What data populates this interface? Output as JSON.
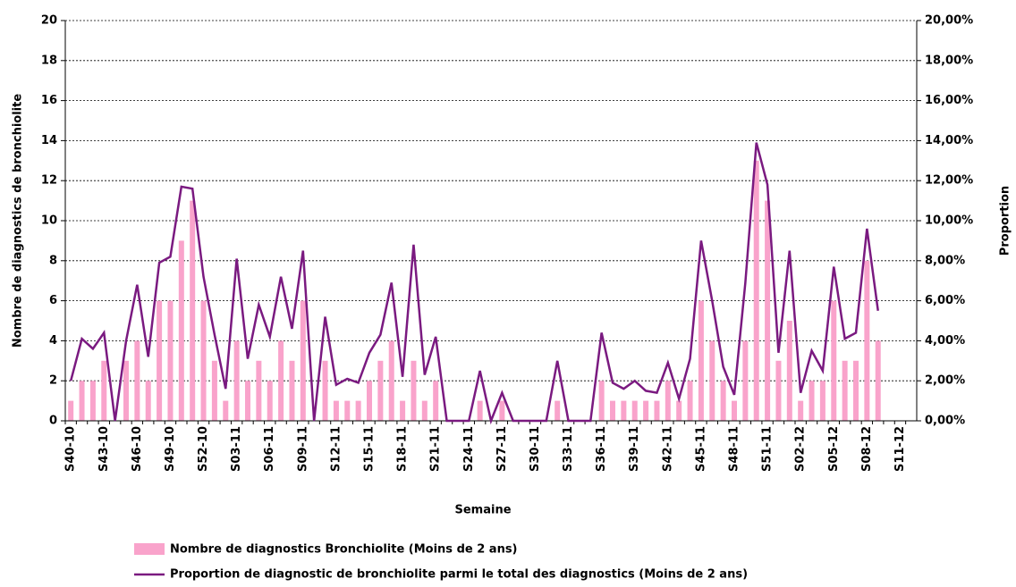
{
  "chart_data": {
    "type": "bar_line",
    "x_label": "Semaine",
    "y_label": "Nombre de diagnostics de bronchiolite",
    "y2_label": "Proportion",
    "categories": [
      "S40-10",
      null,
      null,
      "S43-10",
      null,
      null,
      "S46-10",
      null,
      null,
      "S49-10",
      null,
      null,
      "S52-10",
      null,
      null,
      "S03-11",
      null,
      null,
      "S06-11",
      null,
      null,
      "S09-11",
      null,
      null,
      "S12-11",
      null,
      null,
      "S15-11",
      null,
      null,
      "S18-11",
      null,
      null,
      "S21-11",
      null,
      null,
      "S24-11",
      null,
      null,
      "S27-11",
      null,
      null,
      "S30-11",
      null,
      null,
      "S33-11",
      null,
      null,
      "S36-11",
      null,
      null,
      "S39-11",
      null,
      null,
      "S42-11",
      null,
      null,
      "S45-11",
      null,
      null,
      "S48-11",
      null,
      null,
      "S51-11",
      null,
      null,
      "S02-12",
      null,
      null,
      "S05-12",
      null,
      null,
      "S08-12",
      null,
      null,
      "S11-12",
      null
    ],
    "series": [
      {
        "name": "Nombre de diagnostics Bronchiolite (Moins de 2 ans)",
        "kind": "bar",
        "color": "#f9a3cb",
        "values": [
          1,
          2,
          2,
          3,
          0,
          3,
          4,
          2,
          6,
          6,
          9,
          11,
          6,
          3,
          1,
          4,
          2,
          3,
          2,
          4,
          3,
          6,
          0,
          3,
          1,
          1,
          1,
          2,
          3,
          4,
          1,
          3,
          1,
          2,
          0,
          0,
          0,
          1,
          0,
          1,
          0,
          0,
          0,
          0,
          1,
          0,
          0,
          0,
          2,
          1,
          1,
          1,
          1,
          1,
          2,
          1,
          2,
          6,
          4,
          2,
          1,
          4,
          13,
          11,
          3,
          5,
          1,
          2,
          2,
          6,
          3,
          3,
          8,
          4,
          null,
          null,
          null
        ]
      },
      {
        "name": "Proportion de diagnostic de bronchiolite parmi le total des diagnostics (Moins de 2 ans)",
        "kind": "line",
        "axis": "y2",
        "color": "#7a1a80",
        "values": [
          2.0,
          4.1,
          3.6,
          4.4,
          0,
          4.0,
          6.8,
          3.2,
          7.9,
          8.2,
          11.7,
          11.6,
          7.2,
          4.3,
          1.6,
          8.1,
          3.1,
          5.8,
          4.2,
          7.2,
          4.6,
          8.5,
          0,
          5.2,
          1.8,
          2.1,
          1.9,
          3.4,
          4.3,
          6.9,
          2.2,
          8.8,
          2.3,
          4.2,
          0,
          0,
          0,
          2.5,
          0,
          1.4,
          0,
          0,
          0,
          0,
          3.0,
          0,
          0,
          0,
          4.4,
          1.9,
          1.6,
          2.0,
          1.5,
          1.4,
          2.9,
          1.1,
          3.1,
          9.0,
          6.0,
          2.7,
          1.3,
          6.9,
          13.9,
          11.8,
          3.4,
          8.5,
          1.4,
          3.5,
          2.5,
          7.7,
          4.1,
          4.4,
          9.6,
          5.5,
          null,
          null,
          null
        ]
      }
    ],
    "ylim": [
      0,
      20
    ],
    "yticks": [
      0,
      2,
      4,
      6,
      8,
      10,
      12,
      14,
      16,
      18,
      20
    ],
    "y2lim": [
      0,
      20
    ],
    "y2ticks": [
      {
        "value": 0,
        "label": "0,00%"
      },
      {
        "value": 2,
        "label": "2,00%"
      },
      {
        "value": 4,
        "label": "4,00%"
      },
      {
        "value": 6,
        "label": "6,00%"
      },
      {
        "value": 8,
        "label": "8,00%"
      },
      {
        "value": 10,
        "label": "10,00%"
      },
      {
        "value": 12,
        "label": "12,00%"
      },
      {
        "value": 14,
        "label": "14,00%"
      },
      {
        "value": 16,
        "label": "16,00%"
      },
      {
        "value": 18,
        "label": "18,00%"
      },
      {
        "value": 20,
        "label": "20,00%"
      }
    ],
    "grid": true,
    "legend": "bottom"
  }
}
